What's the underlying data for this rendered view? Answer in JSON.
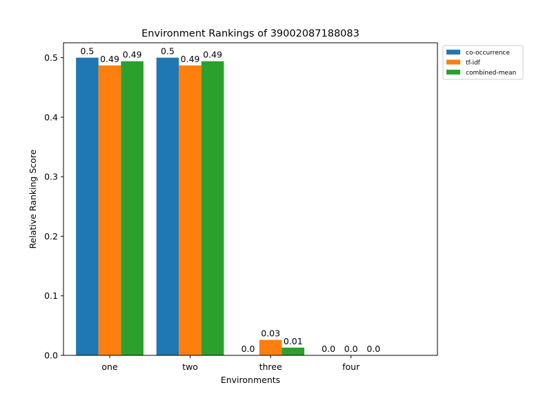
{
  "chart_data": {
    "type": "bar",
    "title": "Environment Rankings of 39002087188083",
    "xlabel": "Environments",
    "ylabel": "Relative Ranking Score",
    "categories": [
      "one",
      "two",
      "three",
      "four"
    ],
    "ylim": [
      0,
      0.525
    ],
    "yticks": [
      0.0,
      0.1,
      0.2,
      0.3,
      0.4,
      0.5
    ],
    "ytick_labels": [
      "0.0",
      "0.1",
      "0.2",
      "0.3",
      "0.4",
      "0.5"
    ],
    "grid": false,
    "legend_position": "outside-top-right",
    "series": [
      {
        "name": "co-occurrence",
        "color": "#1f77b4",
        "values": [
          0.5,
          0.5,
          0.0,
          0.0
        ],
        "labels": [
          "0.5",
          "0.5",
          "0.0",
          "0.0"
        ]
      },
      {
        "name": "tf-idf",
        "color": "#ff7f0e",
        "values": [
          0.487,
          0.487,
          0.026,
          0.0
        ],
        "labels": [
          "0.49",
          "0.49",
          "0.03",
          "0.0"
        ]
      },
      {
        "name": "combined-mean",
        "color": "#2ca02c",
        "values": [
          0.494,
          0.494,
          0.013,
          0.0
        ],
        "labels": [
          "0.49",
          "0.49",
          "0.01",
          "0.0"
        ]
      }
    ]
  }
}
